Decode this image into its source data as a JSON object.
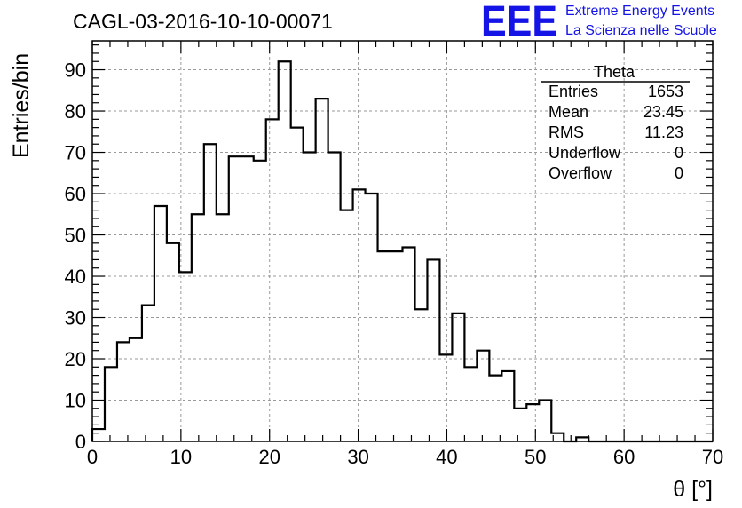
{
  "brand": {
    "logo_text": "EEE",
    "line1": "Extreme Energy Events",
    "line2": "La Scienza nelle Scuole",
    "color": "#1414e6"
  },
  "stats": {
    "name": "Theta",
    "rows": [
      {
        "label": "Entries",
        "value": "1653"
      },
      {
        "label": "Mean",
        "value": "23.45"
      },
      {
        "label": "RMS",
        "value": "11.23"
      },
      {
        "label": "Underflow",
        "value": "0"
      },
      {
        "label": "Overflow",
        "value": "0"
      }
    ]
  },
  "chart_data": {
    "type": "bar",
    "histogram": true,
    "title": "CAGL-03-2016-10-10-00071",
    "xlabel": "θ [°]",
    "ylabel": "Entries/bin",
    "xlim": [
      0,
      70
    ],
    "ylim": [
      0,
      97
    ],
    "bin_width": 1.4,
    "bin_edges_start": 0,
    "x_ticks": [
      0,
      10,
      20,
      30,
      40,
      50,
      60,
      70
    ],
    "y_ticks": [
      0,
      10,
      20,
      30,
      40,
      50,
      60,
      70,
      80,
      90
    ],
    "grid": true,
    "line_color": "#000000",
    "values": [
      3,
      18,
      24,
      25,
      33,
      57,
      48,
      41,
      55,
      72,
      55,
      69,
      69,
      68,
      78,
      92,
      76,
      70,
      83,
      70,
      56,
      61,
      60,
      46,
      46,
      47,
      32,
      44,
      21,
      31,
      18,
      22,
      16,
      17,
      8,
      9,
      10,
      2,
      0,
      1,
      0,
      0,
      0,
      0,
      0,
      0,
      0,
      0,
      0,
      0
    ]
  }
}
